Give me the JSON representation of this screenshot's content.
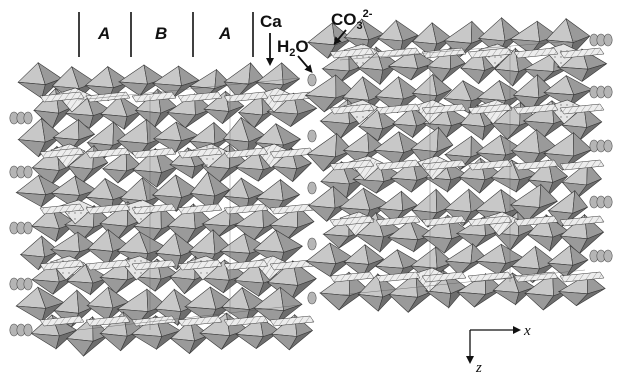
{
  "figure": {
    "layer_labels": [
      "A",
      "B",
      "A"
    ],
    "annotations": {
      "ca": "Ca",
      "h2o": {
        "main": "H",
        "sub": "2",
        "tail": "O"
      },
      "co3": {
        "main": "CO",
        "sub": "3",
        "sup": "2-"
      }
    },
    "axes": {
      "x": "x",
      "z": "z"
    },
    "colors": {
      "polyhedron_light": "#c8c8c8",
      "polyhedron_mid": "#9a9a9a",
      "polyhedron_dark": "#6e6e6e",
      "edge": "#3a3a3a",
      "hatched_face": "#e6e6e6",
      "water_oval": "#b5b5b5",
      "background": "#ffffff"
    }
  }
}
